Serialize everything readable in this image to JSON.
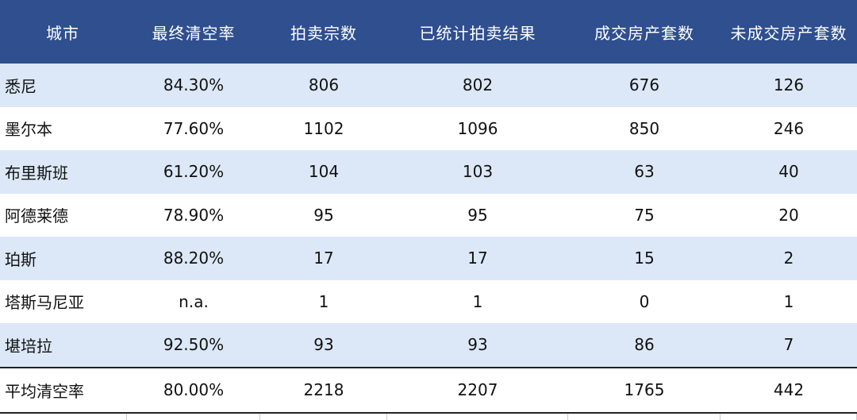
{
  "header": [
    "城市",
    "最终清空率",
    "拍卖宗数",
    "已统计拍卖结果",
    "成交房产套数",
    "未成交房产套数"
  ],
  "rows": [
    [
      "悉尼",
      "84.30%",
      "806",
      "802",
      "676",
      "126"
    ],
    [
      "墨尔本",
      "77.60%",
      "1102",
      "1096",
      "850",
      "246"
    ],
    [
      "布里斯班",
      "61.20%",
      "104",
      "103",
      "63",
      "40"
    ],
    [
      "阿德莱德",
      "78.90%",
      "95",
      "95",
      "75",
      "20"
    ],
    [
      "珀斯",
      "88.20%",
      "17",
      "17",
      "15",
      "2"
    ],
    [
      "塔斯马尼亚",
      "n.a.",
      "1",
      "1",
      "0",
      "1"
    ],
    [
      "堪培拉",
      "92.50%",
      "93",
      "93",
      "86",
      "7"
    ]
  ],
  "total": [
    "平均清空率",
    "80.00%",
    "2218",
    "2207",
    "1765",
    "442"
  ],
  "colors": {
    "header_bg": "#2f4f8f",
    "band_bg": "#dce8f7"
  }
}
